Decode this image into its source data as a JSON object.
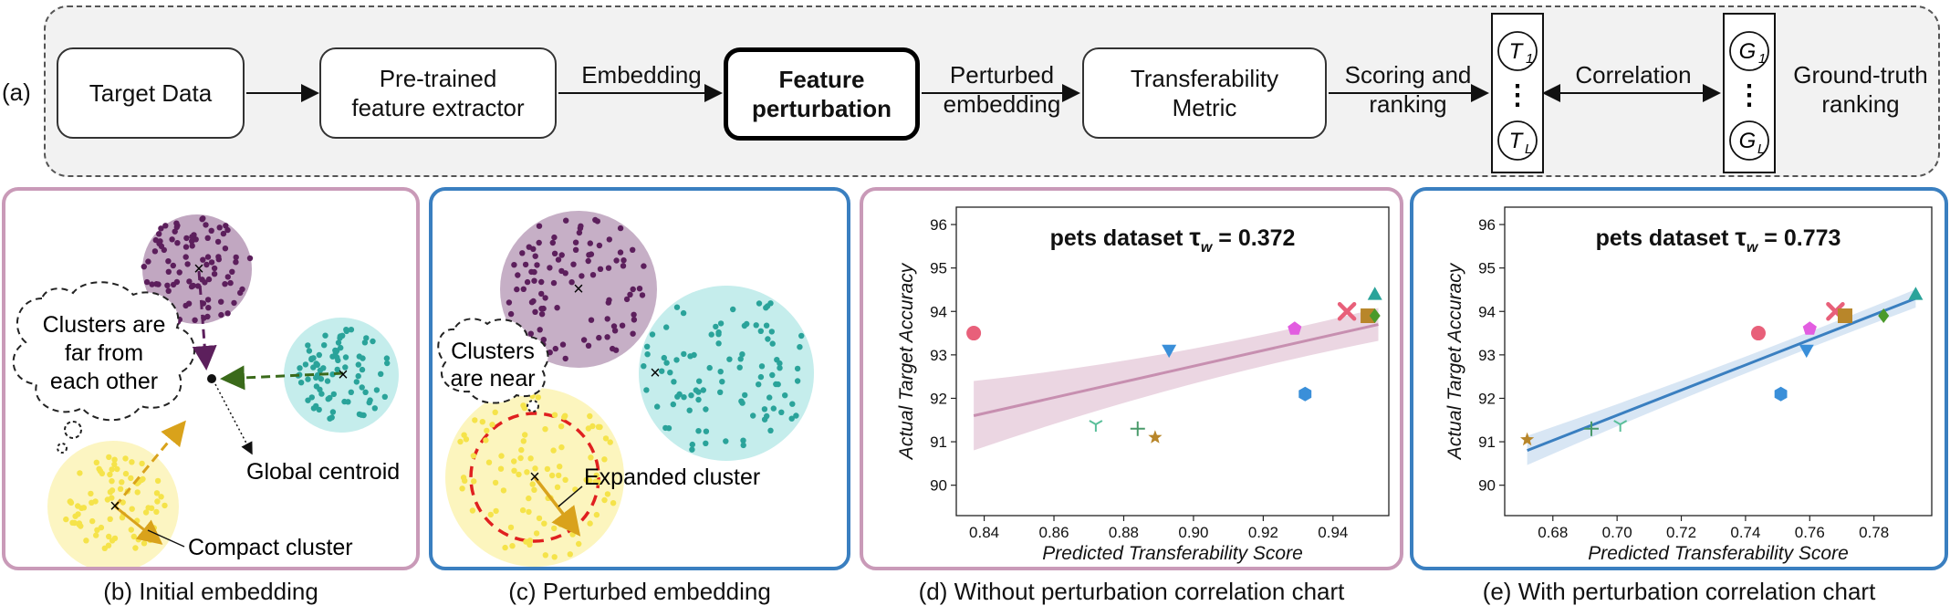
{
  "pipeline": {
    "row_label": "(a)",
    "nodes": {
      "target": "Target Data",
      "extractor_l1": "Pre-trained",
      "extractor_l2": "feature extractor",
      "perturb_l1": "Feature",
      "perturb_l2": "perturbation",
      "metric_l1": "Transferability",
      "metric_l2": "Metric"
    },
    "edges": {
      "embedding": "Embedding",
      "perturbed_l1": "Perturbed",
      "perturbed_l2": "embedding",
      "scoring_l1": "Scoring and",
      "scoring_l2": "ranking",
      "correlation": "Correlation",
      "gt_l1": "Ground-truth",
      "gt_l2": "ranking"
    },
    "rank_predicted": {
      "top": "T",
      "top_sub": "1",
      "bottom": "T",
      "bottom_sub": "L",
      "dots": "⋮"
    },
    "rank_truth": {
      "top": "G",
      "top_sub": "1",
      "bottom": "G",
      "bottom_sub": "L",
      "dots": "⋮"
    }
  },
  "panel_b": {
    "caption": "(b) Initial embedding",
    "thought_l1": "Clusters are",
    "thought_l2": "far from",
    "thought_l3": "each other",
    "global_centroid": "Global centroid",
    "compact_cluster": "Compact cluster",
    "centroid_mark": "×"
  },
  "panel_c": {
    "caption": "(c) Perturbed embedding",
    "thought_l1": "Clusters",
    "thought_l2": "are near",
    "expanded_cluster": "Expanded cluster",
    "centroid_mark": "×"
  },
  "panel_d": {
    "caption": "(d) Without perturbation correlation chart",
    "border_color": "#c99ab8"
  },
  "panel_e": {
    "caption": "(e) With perturbation correlation chart",
    "border_color": "#3a7fc0"
  },
  "colors": {
    "purple_cluster": "#5c1f5c",
    "teal_cluster": "#2aa39a",
    "yellow_cluster": "#f5e34a",
    "perturb_ring": "#e02020",
    "arrow_orange": "#d9a21b",
    "pink_fit": "#c78fb0",
    "blue_fit": "#3a7fc0"
  },
  "chart_data": [
    {
      "type": "scatter",
      "title": "pets dataset",
      "title_metric": "τ",
      "title_metric_sub": "w",
      "title_value": "= 0.372",
      "xlabel": "Predicted Transferability Score",
      "ylabel": "Actual Target Accuracy",
      "xlim": [
        0.832,
        0.956
      ],
      "ylim": [
        89.3,
        96.4
      ],
      "xticks": [
        "0.84",
        "0.86",
        "0.88",
        "0.90",
        "0.92",
        "0.94"
      ],
      "xtick_values": [
        0.84,
        0.86,
        0.88,
        0.9,
        0.92,
        0.94
      ],
      "yticks": [
        "90",
        "91",
        "92",
        "93",
        "94",
        "95",
        "96"
      ],
      "ytick_values": [
        90,
        91,
        92,
        93,
        94,
        95,
        96
      ],
      "fit": {
        "x0": 0.837,
        "y0": 91.6,
        "x1": 0.953,
        "y1": 93.7
      },
      "fit_color": "#c78fb0",
      "band_color": "#e3c4d6",
      "points": [
        {
          "x": 0.837,
          "y": 93.5,
          "marker": "circle",
          "color": "#e8607a"
        },
        {
          "x": 0.893,
          "y": 93.1,
          "marker": "triangle-down",
          "color": "#3a8fd9"
        },
        {
          "x": 0.929,
          "y": 93.6,
          "marker": "pentagon",
          "color": "#e25de0"
        },
        {
          "x": 0.932,
          "y": 92.1,
          "marker": "hexagon",
          "color": "#3a8fd9"
        },
        {
          "x": 0.944,
          "y": 94.0,
          "marker": "x",
          "color": "#e8607a"
        },
        {
          "x": 0.95,
          "y": 93.9,
          "marker": "square",
          "color": "#b8862a"
        },
        {
          "x": 0.952,
          "y": 93.9,
          "marker": "diamond",
          "color": "#4a9a2a"
        },
        {
          "x": 0.952,
          "y": 94.4,
          "marker": "triangle-up",
          "color": "#2aa39a"
        },
        {
          "x": 0.872,
          "y": 91.4,
          "marker": "tri",
          "color": "#5abf9a"
        },
        {
          "x": 0.884,
          "y": 91.3,
          "marker": "plus",
          "color": "#4a9a6a"
        },
        {
          "x": 0.889,
          "y": 91.1,
          "marker": "star",
          "color": "#b8862a"
        }
      ]
    },
    {
      "type": "scatter",
      "title": "pets dataset",
      "title_metric": "τ",
      "title_metric_sub": "w",
      "title_value": "= 0.773",
      "xlabel": "Predicted Transferability Score",
      "ylabel": "Actual Target Accuracy",
      "xlim": [
        0.665,
        0.798
      ],
      "ylim": [
        89.3,
        96.4
      ],
      "xticks": [
        "0.68",
        "0.70",
        "0.72",
        "0.74",
        "0.76",
        "0.78"
      ],
      "xtick_values": [
        0.68,
        0.7,
        0.72,
        0.74,
        0.76,
        0.78
      ],
      "yticks": [
        "90",
        "91",
        "92",
        "93",
        "94",
        "95",
        "96"
      ],
      "ytick_values": [
        90,
        91,
        92,
        93,
        94,
        95,
        96
      ],
      "fit": {
        "x0": 0.672,
        "y0": 90.8,
        "x1": 0.793,
        "y1": 94.3
      },
      "fit_color": "#3a7fc0",
      "band_color": "#c7dcf0",
      "points": [
        {
          "x": 0.672,
          "y": 91.05,
          "marker": "star",
          "color": "#b8862a"
        },
        {
          "x": 0.692,
          "y": 91.3,
          "marker": "plus",
          "color": "#4a9a6a"
        },
        {
          "x": 0.701,
          "y": 91.4,
          "marker": "tri",
          "color": "#5abf9a"
        },
        {
          "x": 0.744,
          "y": 93.5,
          "marker": "circle",
          "color": "#e8607a"
        },
        {
          "x": 0.751,
          "y": 92.1,
          "marker": "hexagon",
          "color": "#3a8fd9"
        },
        {
          "x": 0.759,
          "y": 93.1,
          "marker": "triangle-down",
          "color": "#3a8fd9"
        },
        {
          "x": 0.76,
          "y": 93.6,
          "marker": "pentagon",
          "color": "#e25de0"
        },
        {
          "x": 0.768,
          "y": 94.0,
          "marker": "x",
          "color": "#e8607a"
        },
        {
          "x": 0.771,
          "y": 93.9,
          "marker": "square",
          "color": "#b8862a"
        },
        {
          "x": 0.783,
          "y": 93.9,
          "marker": "diamond",
          "color": "#4a9a2a"
        },
        {
          "x": 0.793,
          "y": 94.4,
          "marker": "triangle-up",
          "color": "#2aa39a"
        }
      ]
    }
  ]
}
